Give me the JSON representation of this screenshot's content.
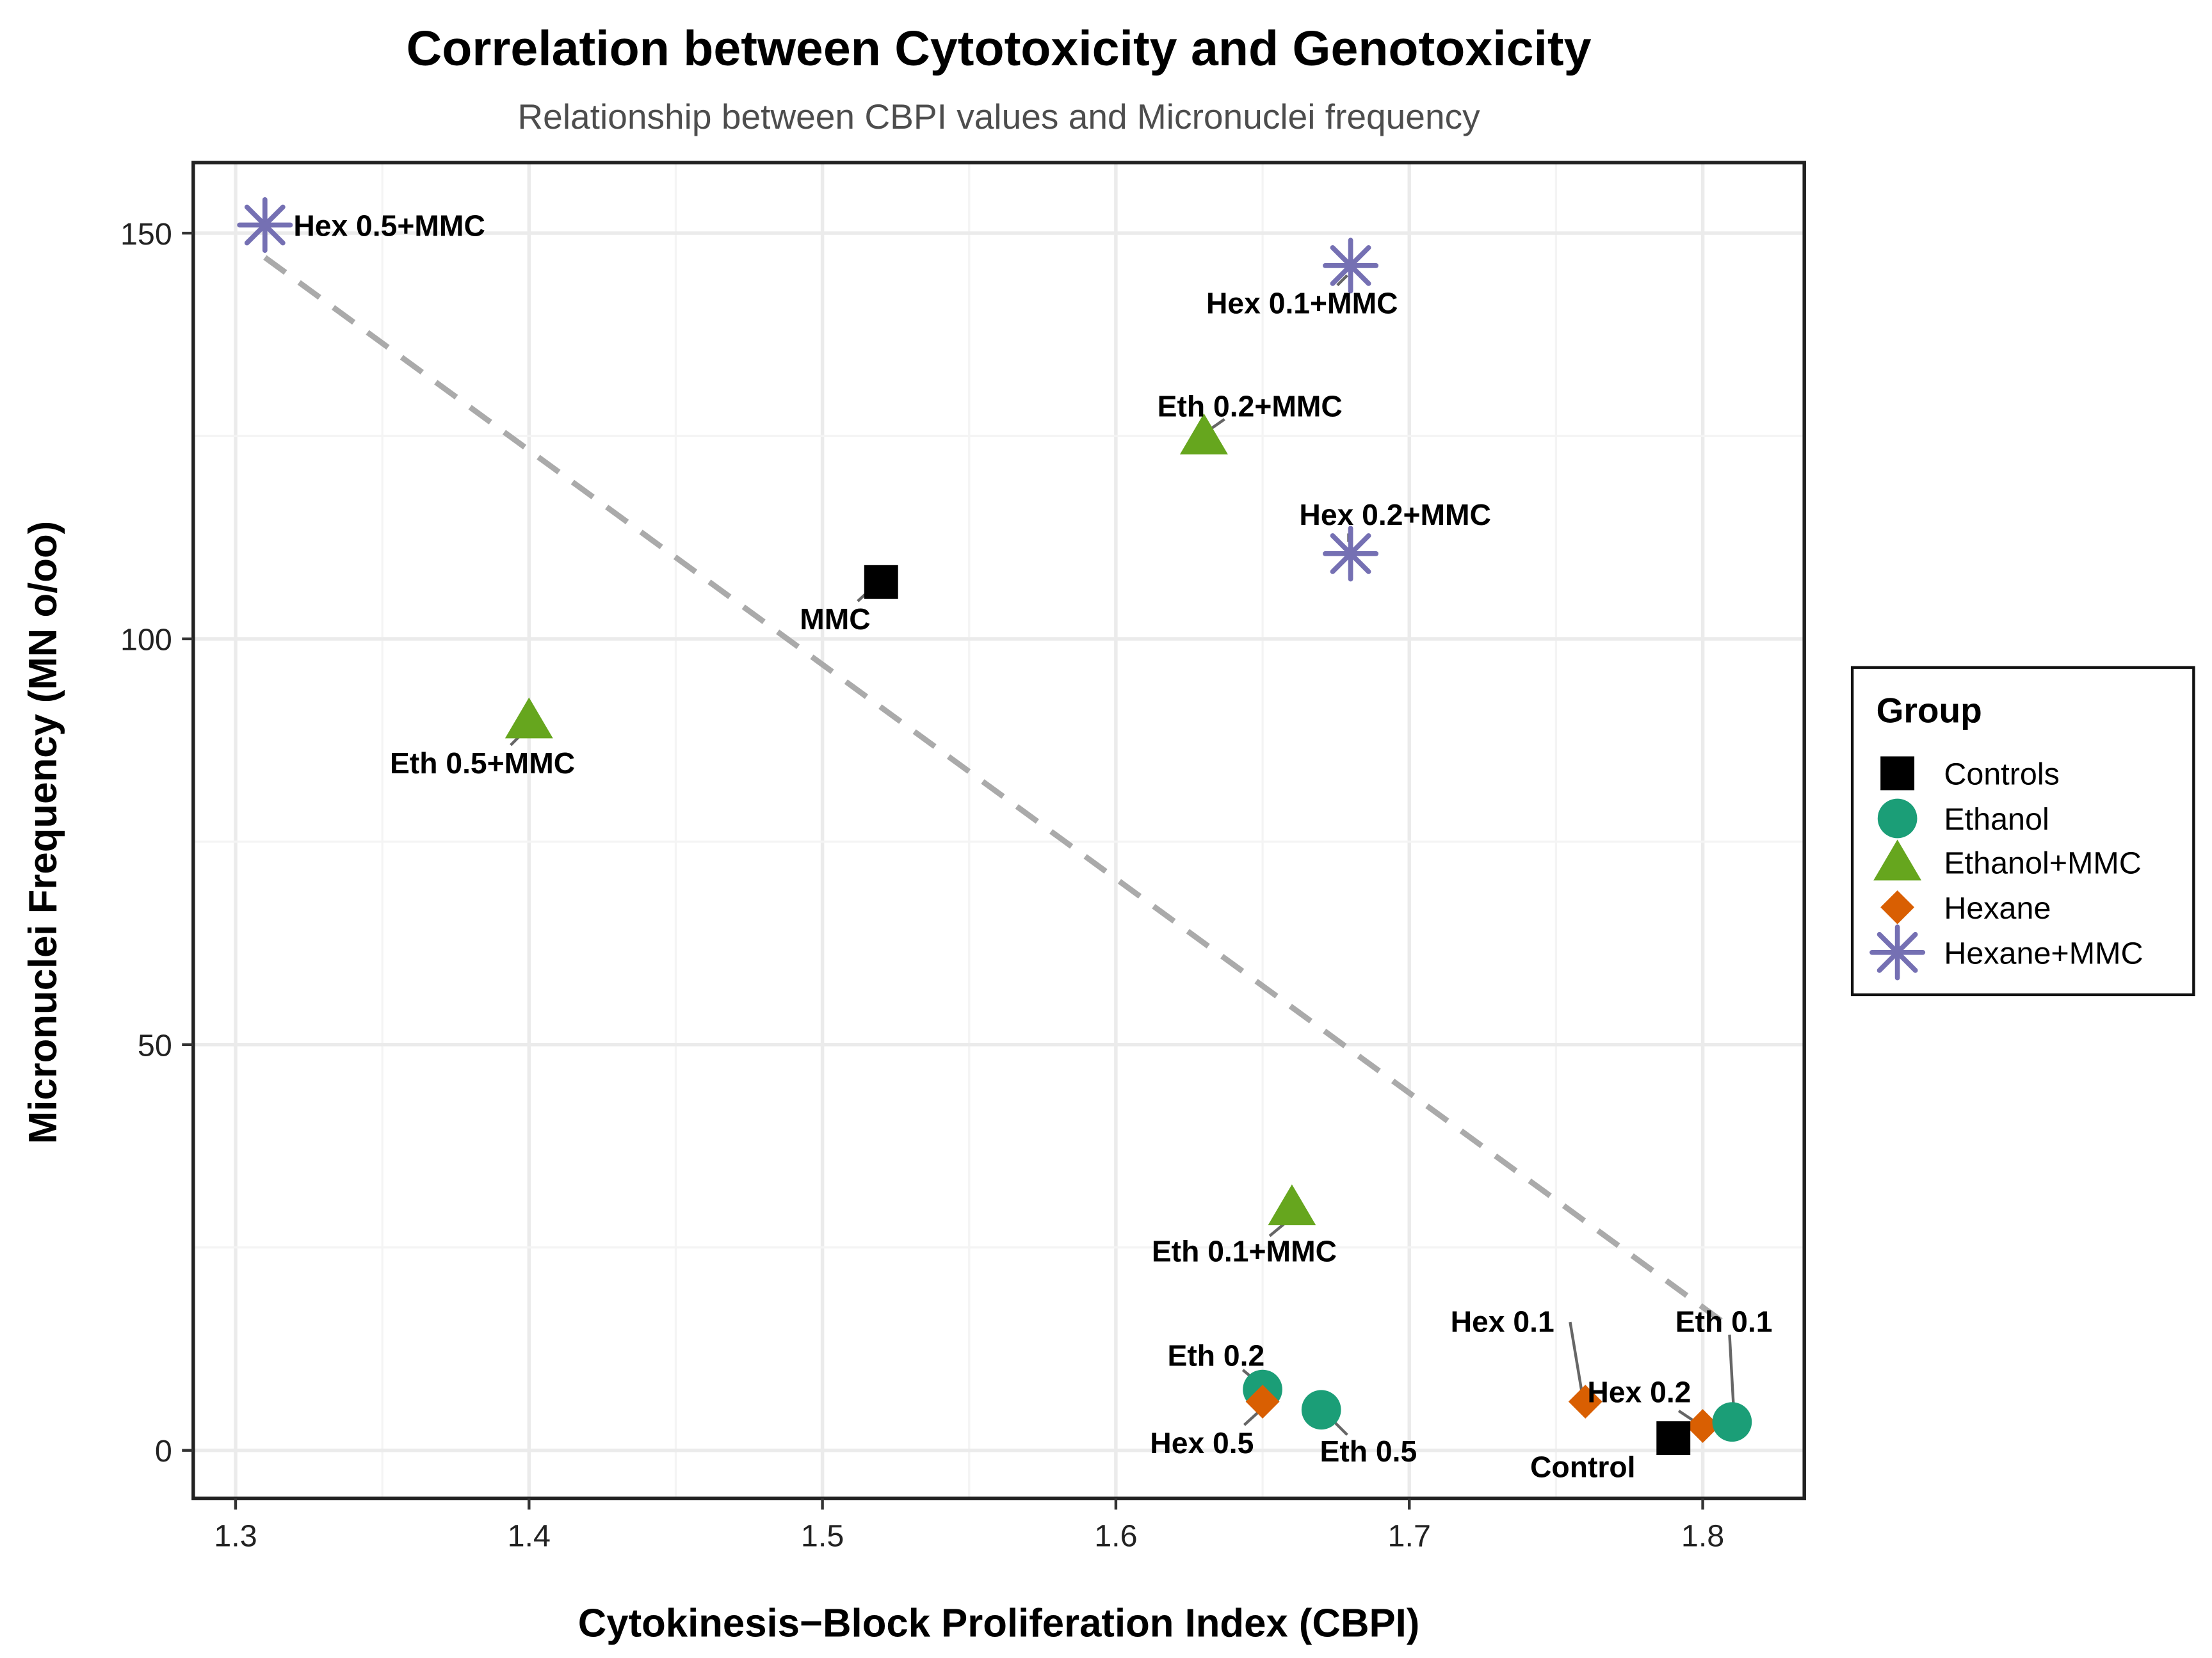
{
  "chart_data": {
    "type": "scatter",
    "title": "Correlation between Cytotoxicity and Genotoxicity",
    "subtitle": "Relationship between CBPI values and Micronuclei frequency",
    "xlabel": "Cytokinesis−Block Proliferation Index (CBPI)",
    "ylabel": "Micronuclei Frequency (MN o/oo)",
    "xlim": [
      1.286,
      1.835
    ],
    "ylim": [
      -6,
      158.7
    ],
    "xticks": [
      1.3,
      1.4,
      1.5,
      1.6,
      1.7,
      1.8
    ],
    "xtick_labels": [
      "1.3",
      "1.4",
      "1.5",
      "1.6",
      "1.7",
      "1.8"
    ],
    "yticks": [
      0,
      50,
      100,
      150
    ],
    "ytick_labels": [
      "0",
      "50",
      "100",
      "150"
    ],
    "grid": true,
    "legend": {
      "title": "Group",
      "placement": "right",
      "entries": [
        {
          "name": "Controls",
          "shape": "square",
          "color": "#000000"
        },
        {
          "name": "Ethanol",
          "shape": "circle",
          "color": "#1b9e77"
        },
        {
          "name": "Ethanol+MMC",
          "shape": "triangle",
          "color": "#66a61e"
        },
        {
          "name": "Hexane",
          "shape": "diamond",
          "color": "#d95f02"
        },
        {
          "name": "Hexane+MMC",
          "shape": "asterisk",
          "color": "#7570b3"
        }
      ]
    },
    "points": [
      {
        "label": "Hex 0.5+MMC",
        "group": "Hexane+MMC",
        "x": 1.31,
        "y": 151
      },
      {
        "label": "Hex 0.1+MMC",
        "group": "Hexane+MMC",
        "x": 1.68,
        "y": 146
      },
      {
        "label": "Eth 0.2+MMC",
        "group": "Ethanol+MMC",
        "x": 1.63,
        "y": 125
      },
      {
        "label": "Hex 0.2+MMC",
        "group": "Hexane+MMC",
        "x": 1.68,
        "y": 110.5
      },
      {
        "label": "MMC",
        "group": "Controls",
        "x": 1.52,
        "y": 107
      },
      {
        "label": "Eth 0.5+MMC",
        "group": "Ethanol+MMC",
        "x": 1.4,
        "y": 90
      },
      {
        "label": "Eth 0.1+MMC",
        "group": "Ethanol+MMC",
        "x": 1.66,
        "y": 30
      },
      {
        "label": "Eth 0.2",
        "group": "Ethanol",
        "x": 1.65,
        "y": 7.5
      },
      {
        "label": "Hex 0.5",
        "group": "Hexane",
        "x": 1.65,
        "y": 6
      },
      {
        "label": "Eth 0.5",
        "group": "Ethanol",
        "x": 1.67,
        "y": 5
      },
      {
        "label": "Hex 0.1",
        "group": "Hexane",
        "x": 1.76,
        "y": 6
      },
      {
        "label": "Hex 0.2",
        "group": "Hexane",
        "x": 1.8,
        "y": 3
      },
      {
        "label": "Eth 0.1",
        "group": "Ethanol",
        "x": 1.81,
        "y": 3.5
      },
      {
        "label": "Control",
        "group": "Controls",
        "x": 1.79,
        "y": 1.5
      }
    ],
    "trend_line": {
      "style": "dashed",
      "color": "#aaaaaa",
      "x": [
        1.31,
        1.81
      ],
      "y": [
        147,
        15
      ]
    }
  }
}
